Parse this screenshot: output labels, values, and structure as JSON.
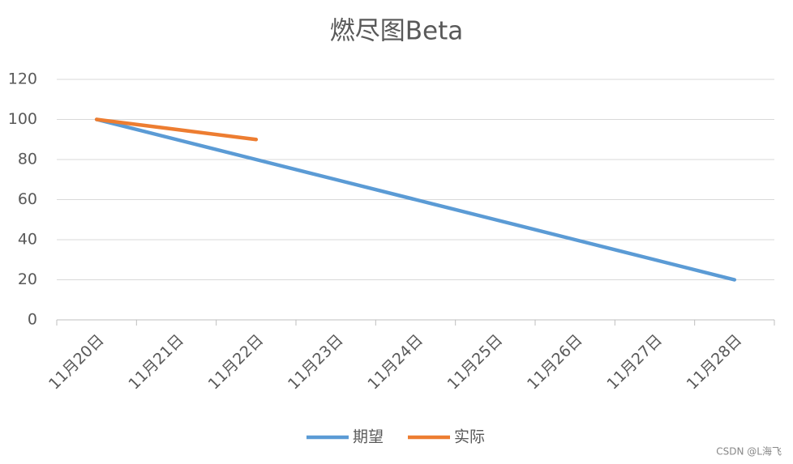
{
  "chart_data": {
    "type": "line",
    "title": "燃尽图Beta",
    "categories": [
      "11月20日",
      "11月21日",
      "11月22日",
      "11月23日",
      "11月24日",
      "11月25日",
      "11月26日",
      "11月27日",
      "11月28日"
    ],
    "series": [
      {
        "name": "期望",
        "color": "#5b9bd5",
        "values": [
          100,
          90,
          80,
          70,
          60,
          50,
          40,
          30,
          20
        ]
      },
      {
        "name": "实际",
        "color": "#ed7d31",
        "values": [
          100,
          95,
          90,
          null,
          null,
          null,
          null,
          null,
          null
        ]
      }
    ],
    "ylim": [
      0,
      120
    ],
    "yticks": [
      0,
      20,
      40,
      60,
      80,
      100,
      120
    ],
    "grid": true,
    "legend": "bottom"
  },
  "watermark": "CSDN @L海飞"
}
